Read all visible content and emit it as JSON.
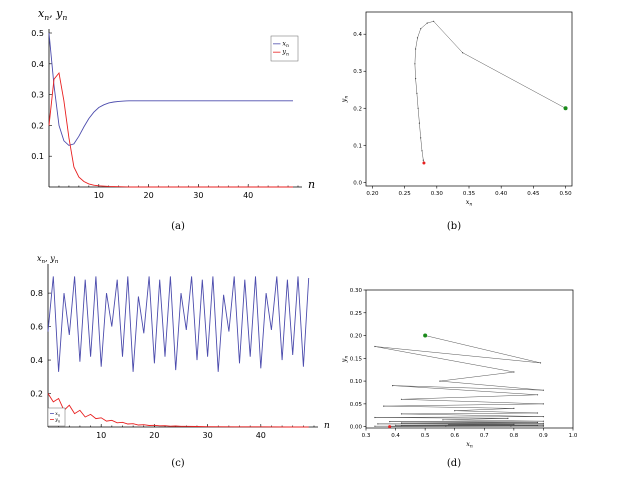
{
  "captions": [
    "(a)",
    "(b)",
    "(c)",
    "(d)"
  ],
  "chart_data": [
    {
      "id": "a",
      "type": "line",
      "ylabel": "x_n, y_n",
      "xlabel": "n",
      "xlim": [
        0,
        50
      ],
      "ylim": [
        0,
        0.5
      ],
      "xticks": [
        10,
        20,
        30,
        40
      ],
      "yticks": [
        0.1,
        0.2,
        0.3,
        0.4,
        0.5
      ],
      "legend": "top-right",
      "series": [
        {
          "name": "x_n",
          "color": "#4c4cad",
          "x": [
            0,
            1,
            2,
            3,
            4,
            5,
            6,
            7,
            8,
            9,
            10,
            11,
            12,
            13,
            14,
            15,
            16,
            18,
            20,
            25,
            30,
            35,
            40,
            45,
            49
          ],
          "values": [
            0.5,
            0.33,
            0.2,
            0.15,
            0.135,
            0.14,
            0.165,
            0.195,
            0.222,
            0.243,
            0.258,
            0.267,
            0.273,
            0.276,
            0.278,
            0.279,
            0.28,
            0.28,
            0.28,
            0.28,
            0.28,
            0.28,
            0.28,
            0.28,
            0.28
          ]
        },
        {
          "name": "y_n",
          "color": "#e82020",
          "x": [
            0,
            1,
            2,
            3,
            4,
            5,
            6,
            7,
            8,
            9,
            10,
            12,
            14,
            16,
            20,
            25,
            30,
            40,
            49
          ],
          "values": [
            0.2,
            0.35,
            0.37,
            0.28,
            0.16,
            0.065,
            0.032,
            0.018,
            0.01,
            0.006,
            0.004,
            0.002,
            0.001,
            0.0,
            0.0,
            0.0,
            0.0,
            0.0,
            0.0
          ]
        }
      ]
    },
    {
      "id": "b",
      "type": "line",
      "xlabel": "x_n",
      "ylabel": "y_n",
      "xlim": [
        0.2,
        0.5
      ],
      "ylim": [
        0.0,
        0.45
      ],
      "xticks": [
        0.2,
        0.25,
        0.3,
        0.35,
        0.4,
        0.45,
        0.5
      ],
      "xticklabels": [
        "0.20",
        "0.25",
        "0.30",
        "0.35",
        "0.40",
        "0.45",
        "0.50"
      ],
      "yticks": [
        0.0,
        0.1,
        0.2,
        0.3,
        0.4
      ],
      "yticklabels": [
        "0.0",
        "0.1",
        "0.2",
        "0.3",
        "0.4"
      ],
      "start_color": "#1a8a1a",
      "end_color": "#e82020",
      "path": [
        [
          0.5,
          0.2
        ],
        [
          0.34,
          0.35
        ],
        [
          0.295,
          0.435
        ],
        [
          0.285,
          0.43
        ],
        [
          0.275,
          0.415
        ],
        [
          0.27,
          0.39
        ],
        [
          0.267,
          0.36
        ],
        [
          0.266,
          0.32
        ],
        [
          0.267,
          0.28
        ],
        [
          0.269,
          0.24
        ],
        [
          0.271,
          0.2
        ],
        [
          0.273,
          0.16
        ],
        [
          0.275,
          0.12
        ],
        [
          0.277,
          0.085
        ],
        [
          0.279,
          0.06
        ],
        [
          0.28,
          0.052
        ]
      ]
    },
    {
      "id": "c",
      "type": "line",
      "ylabel": "x_n, y_n",
      "xlabel": "n",
      "xlim": [
        0,
        50
      ],
      "ylim": [
        0,
        0.95
      ],
      "xticks": [
        10,
        20,
        30,
        40
      ],
      "yticks": [
        0.2,
        0.4,
        0.6,
        0.8
      ],
      "legend": "bottom-left",
      "series": [
        {
          "name": "x_n",
          "color": "#4c4cad",
          "x": [
            0,
            1,
            2,
            3,
            4,
            5,
            6,
            7,
            8,
            9,
            10,
            11,
            12,
            13,
            14,
            15,
            16,
            17,
            18,
            19,
            20,
            21,
            22,
            23,
            24,
            25,
            26,
            27,
            28,
            29,
            30,
            31,
            32,
            33,
            34,
            35,
            36,
            37,
            38,
            39,
            40,
            41,
            42,
            43,
            44,
            45,
            46,
            47,
            48,
            49
          ],
          "values": [
            0.57,
            0.9,
            0.33,
            0.8,
            0.55,
            0.9,
            0.39,
            0.88,
            0.42,
            0.9,
            0.36,
            0.8,
            0.6,
            0.88,
            0.42,
            0.9,
            0.33,
            0.78,
            0.56,
            0.9,
            0.38,
            0.88,
            0.42,
            0.9,
            0.34,
            0.8,
            0.58,
            0.9,
            0.4,
            0.88,
            0.42,
            0.9,
            0.33,
            0.79,
            0.57,
            0.9,
            0.38,
            0.88,
            0.42,
            0.9,
            0.35,
            0.8,
            0.58,
            0.9,
            0.4,
            0.88,
            0.43,
            0.9,
            0.36,
            0.89
          ]
        },
        {
          "name": "y_n",
          "color": "#e82020",
          "x": [
            0,
            1,
            2,
            3,
            4,
            5,
            6,
            7,
            8,
            9,
            10,
            11,
            12,
            13,
            14,
            15,
            16,
            17,
            18,
            19,
            20,
            21,
            22,
            23,
            24,
            25,
            26,
            28,
            30,
            35,
            40,
            45,
            49
          ],
          "values": [
            0.2,
            0.15,
            0.17,
            0.1,
            0.13,
            0.08,
            0.1,
            0.06,
            0.075,
            0.05,
            0.055,
            0.035,
            0.04,
            0.025,
            0.028,
            0.018,
            0.02,
            0.012,
            0.014,
            0.009,
            0.01,
            0.007,
            0.008,
            0.005,
            0.006,
            0.004,
            0.004,
            0.003,
            0.002,
            0.001,
            0.001,
            0.0,
            0.0
          ]
        }
      ]
    },
    {
      "id": "d",
      "type": "line",
      "xlabel": "x_n",
      "ylabel": "y_n",
      "xlim": [
        0.3,
        1.0
      ],
      "ylim": [
        0.0,
        0.3
      ],
      "xticks": [
        0.3,
        0.4,
        0.5,
        0.6,
        0.7,
        0.8,
        0.9,
        1.0
      ],
      "xticklabels": [
        "0.3",
        "0.4",
        "0.5",
        "0.6",
        "0.7",
        "0.8",
        "0.9",
        "1.0"
      ],
      "yticks": [
        0.0,
        0.05,
        0.1,
        0.15,
        0.2,
        0.25,
        0.3
      ],
      "yticklabels": [
        "0.00",
        "0.05",
        "0.10",
        "0.15",
        "0.20",
        "0.25",
        "0.30"
      ],
      "start_color": "#1a8a1a",
      "end_color": "#e82020",
      "path": [
        [
          0.5,
          0.2
        ],
        [
          0.89,
          0.14
        ],
        [
          0.33,
          0.176
        ],
        [
          0.8,
          0.12
        ],
        [
          0.55,
          0.1
        ],
        [
          0.9,
          0.08
        ],
        [
          0.39,
          0.09
        ],
        [
          0.88,
          0.07
        ],
        [
          0.42,
          0.06
        ],
        [
          0.9,
          0.05
        ],
        [
          0.36,
          0.045
        ],
        [
          0.8,
          0.04
        ],
        [
          0.6,
          0.035
        ],
        [
          0.88,
          0.03
        ],
        [
          0.42,
          0.028
        ],
        [
          0.9,
          0.022
        ],
        [
          0.33,
          0.02
        ],
        [
          0.78,
          0.018
        ],
        [
          0.56,
          0.015
        ],
        [
          0.9,
          0.012
        ],
        [
          0.38,
          0.011
        ],
        [
          0.88,
          0.009
        ],
        [
          0.42,
          0.008
        ],
        [
          0.9,
          0.007
        ],
        [
          0.34,
          0.006
        ],
        [
          0.8,
          0.005
        ],
        [
          0.58,
          0.004
        ],
        [
          0.9,
          0.004
        ],
        [
          0.4,
          0.003
        ],
        [
          0.88,
          0.003
        ],
        [
          0.42,
          0.002
        ],
        [
          0.9,
          0.002
        ],
        [
          0.33,
          0.001
        ],
        [
          0.79,
          0.001
        ],
        [
          0.57,
          0.001
        ],
        [
          0.9,
          0.001
        ],
        [
          0.38,
          0.0
        ]
      ]
    }
  ]
}
